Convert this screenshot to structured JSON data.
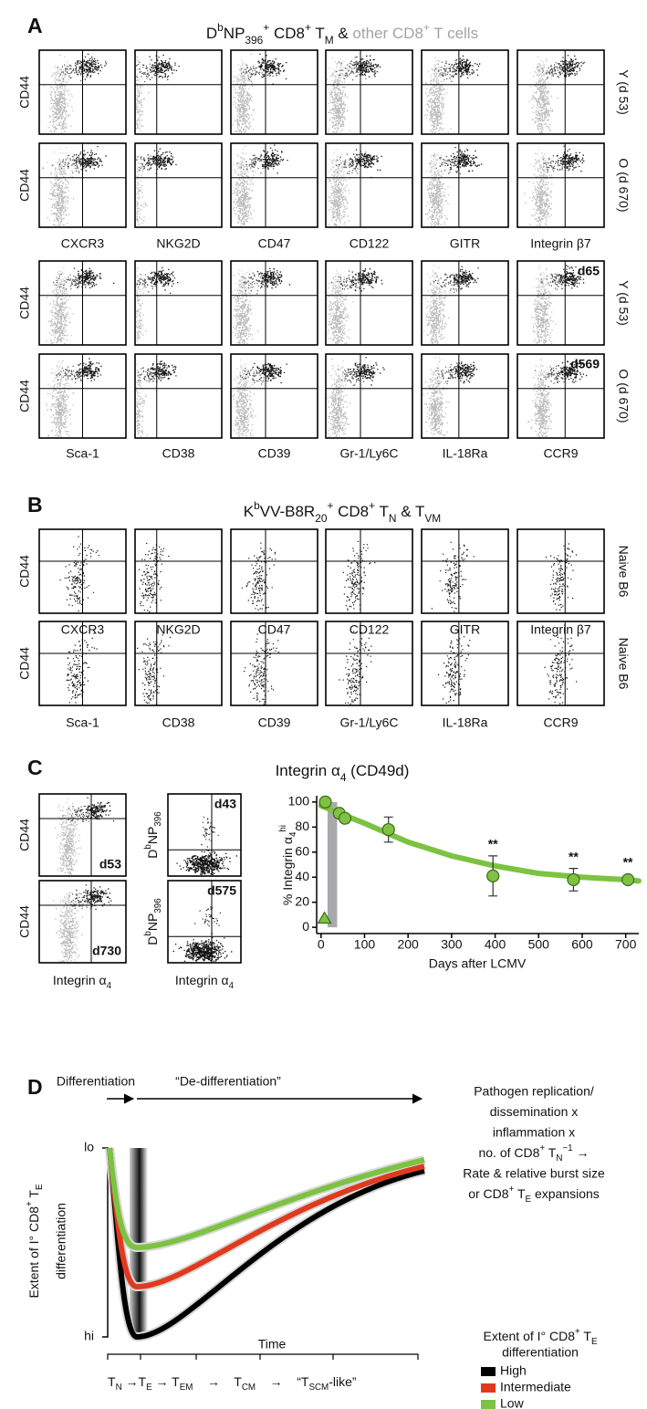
{
  "panel_a": {
    "label": "A",
    "title": [
      {
        "t": "D"
      },
      {
        "t": "b",
        "s": "sup"
      },
      {
        "t": "NP"
      },
      {
        "t": "396",
        "s": "sub"
      },
      {
        "t": "+",
        "s": "sup"
      },
      {
        "t": " CD8"
      },
      {
        "t": "+",
        "s": "sup"
      },
      {
        "t": " T"
      },
      {
        "t": "M",
        "s": "sub"
      },
      {
        "t": " & "
      },
      {
        "t": "other CD8",
        "color": "#a3a3a3"
      },
      {
        "t": "+",
        "s": "sup",
        "color": "#a3a3a3"
      },
      {
        "t": " T cells",
        "color": "#a3a3a3"
      }
    ],
    "y_label": "CD44",
    "groups": [
      {
        "markers": [
          "CXCR3",
          "NKG2D",
          "CD47",
          "CD122",
          "GITR",
          "Integrin β7"
        ],
        "rows": [
          {
            "label": "Y (d 53)"
          },
          {
            "label": "O (d 670)"
          }
        ]
      },
      {
        "markers": [
          "Sca-1",
          "CD38",
          "CD39",
          "Gr-1/Ly6C",
          "IL-18Ra",
          "CCR9"
        ],
        "rows": [
          {
            "label": "Y (d 53)",
            "note": "d65"
          },
          {
            "label": "O (d 670)",
            "note": "d569"
          }
        ]
      }
    ]
  },
  "panel_b": {
    "label": "B",
    "title": [
      {
        "t": "K"
      },
      {
        "t": "b",
        "s": "sup"
      },
      {
        "t": "VV-B8R"
      },
      {
        "t": "20",
        "s": "sub"
      },
      {
        "t": "+",
        "s": "sup"
      },
      {
        "t": " CD8"
      },
      {
        "t": "+",
        "s": "sup"
      },
      {
        "t": " T"
      },
      {
        "t": "N",
        "s": "sub"
      },
      {
        "t": " & T"
      },
      {
        "t": "VM",
        "s": "sub"
      }
    ],
    "y_label": "CD44",
    "row_label": "Naive B6",
    "rows": [
      [
        "CXCR3",
        "NKG2D",
        "CD47",
        "CD122",
        "GITR",
        "Integrin β7"
      ],
      [
        "Sca-1",
        "CD38",
        "CD39",
        "Gr-1/Ly6C",
        "IL-18Ra",
        "CCR9"
      ]
    ]
  },
  "panel_c": {
    "label": "C",
    "title": [
      {
        "t": "Integrin α"
      },
      {
        "t": "4",
        "s": "sub"
      },
      {
        "t": " (CD49d)"
      }
    ],
    "y_label": "CD44",
    "x_label": [
      {
        "t": "Integrin α"
      },
      {
        "t": "4",
        "s": "sub"
      }
    ],
    "tetramer_label": [
      {
        "t": "D"
      },
      {
        "t": "b",
        "s": "sup"
      },
      {
        "t": "NP"
      },
      {
        "t": "396",
        "s": "sub"
      }
    ],
    "left_notes": [
      "d53",
      "d730"
    ],
    "middle_notes": [
      "d43",
      "d575"
    ]
  },
  "chart_data": {
    "type": "scatter",
    "x_label": "Days after LCMV",
    "y_label": [
      {
        "t": "% Integrin α"
      },
      {
        "t": "4",
        "s": "sub"
      },
      {
        "t": "hi",
        "s": "sup"
      }
    ],
    "xlim": [
      -10,
      730
    ],
    "ylim": [
      -5,
      105
    ],
    "xticks": [
      0,
      100,
      200,
      300,
      400,
      500,
      600,
      700
    ],
    "yticks": [
      0,
      20,
      40,
      60,
      80,
      100
    ],
    "shaded_region": [
      15,
      37
    ],
    "series": [
      {
        "marker": "line",
        "color": "#7dc242",
        "x": [
          0,
          100,
          200,
          300,
          400,
          500,
          600,
          700,
          730
        ],
        "values": [
          97,
          83,
          68,
          57,
          49,
          43,
          40,
          38,
          37
        ]
      },
      {
        "marker": "circle",
        "color": "#7dc242",
        "x": [
          10,
          42,
          55,
          155,
          395,
          580,
          705
        ],
        "values": [
          100,
          91,
          87,
          78,
          41,
          38,
          38
        ],
        "errors": [
          null,
          null,
          null,
          10,
          16,
          9,
          null
        ],
        "significance": [
          null,
          null,
          null,
          null,
          "**",
          "**",
          "**"
        ]
      },
      {
        "marker": "triangle",
        "color": "#7dc242",
        "x": [
          8
        ],
        "values": [
          7
        ]
      }
    ]
  },
  "panel_d": {
    "label": "D",
    "phase_1": "Differentiation",
    "phase_2": "“De-differentiation”",
    "factors": [
      "Pathogen replication/",
      "dissemination x",
      "inflammation x",
      [
        {
          "t": "no. of CD8"
        },
        {
          "t": "+",
          "s": "sup"
        },
        {
          "t": " T"
        },
        {
          "t": "N",
          "s": "sub"
        },
        {
          "t": "−1",
          "s": "sup"
        },
        {
          "t": " →"
        }
      ],
      "Rate & relative burst size",
      [
        {
          "t": "or CD8"
        },
        {
          "t": "+",
          "s": "sup"
        },
        {
          "t": " T"
        },
        {
          "t": "E",
          "s": "sub"
        },
        {
          "t": " expansions"
        }
      ]
    ],
    "y_label": [
      [
        {
          "t": "Extent of I° CD8"
        },
        {
          "t": "+",
          "s": "sup"
        },
        {
          "t": " T"
        },
        {
          "t": "E",
          "s": "sub"
        }
      ],
      "differentiation"
    ],
    "y_top": "lo",
    "y_bottom": "hi",
    "x_label": "Time",
    "sequence": [
      {
        "t": "T"
      },
      {
        "t": "N",
        "s": "sub"
      },
      {
        "t": " →T"
      },
      {
        "t": "E",
        "s": "sub"
      },
      {
        "t": " → T"
      },
      {
        "t": "EM",
        "s": "sub"
      },
      {
        "t": "    →    T"
      },
      {
        "t": "CM",
        "s": "sub"
      },
      {
        "t": "    →    “T"
      },
      {
        "t": "SCM",
        "s": "sub"
      },
      {
        "t": "-like”"
      }
    ],
    "legend_title": [
      [
        {
          "t": "Extent of I° CD8"
        },
        {
          "t": "+",
          "s": "sup"
        },
        {
          "t": " T"
        },
        {
          "t": "E",
          "s": "sub"
        }
      ],
      "differentiation"
    ],
    "legend": [
      {
        "name": "High",
        "color": "#000000"
      },
      {
        "name": "Intermediate",
        "color": "#e03a1e"
      },
      {
        "name": "Low",
        "color": "#7dc242"
      }
    ]
  }
}
